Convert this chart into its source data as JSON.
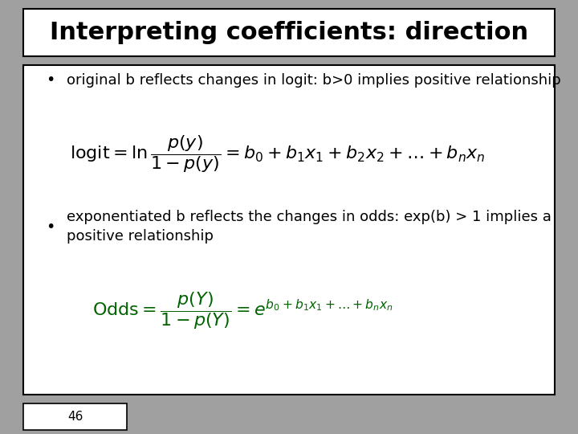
{
  "title": "Interpreting coefficients: direction",
  "title_fontsize": 22,
  "title_bg": "#ffffff",
  "title_border": "#000000",
  "slide_bg": "#a0a0a0",
  "content_bg": "#ffffff",
  "content_border": "#000000",
  "bullet1": "original b reflects changes in logit: b>0 implies positive relationship",
  "bullet2_line1": "exponentiated b reflects the changes in odds: exp(b) > 1 implies a",
  "bullet2_line2": "positive relationship",
  "formula_color1": "#000000",
  "formula_color2": "#006400",
  "bullet_fontsize": 13,
  "formula_fontsize": 16,
  "page_num": "46",
  "page_num_fontsize": 11
}
